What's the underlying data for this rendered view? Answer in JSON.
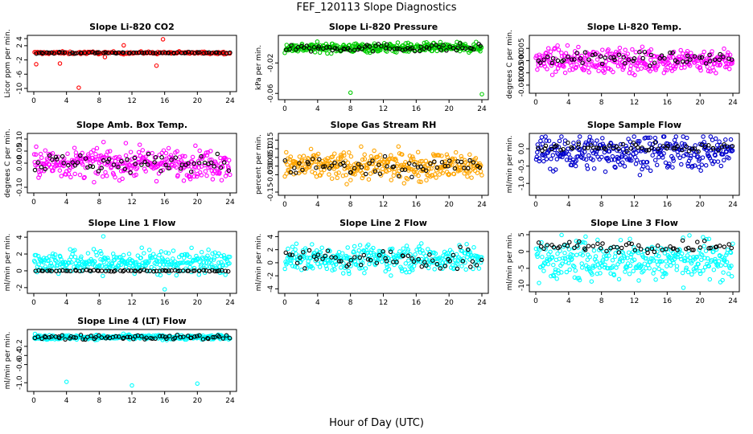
{
  "figure": {
    "title": "FEF_120113  Slope Diagnostics",
    "xlabel": "Hour of Day (UTC)"
  },
  "colors": {
    "black_series": "#000000",
    "axis": "#000000"
  },
  "chart_data": [
    {
      "type": "scatter",
      "title": "Slope Li-820 CO2",
      "ylabel": "Licor ppm per min.",
      "xlim": [
        0,
        24
      ],
      "ylim": [
        -10,
        4
      ],
      "xticks": [
        "0",
        "4",
        "8",
        "12",
        "16",
        "20",
        "24"
      ],
      "yticks": [
        "-10",
        "-6",
        "-2",
        "2",
        "4"
      ],
      "yticks_values": [
        -10,
        -6,
        -2,
        2,
        4
      ],
      "series": [
        {
          "color": "#ff0000",
          "center": 0.0,
          "spread": 0.35,
          "outliers": [
            [
              5.5,
              -9.8
            ],
            [
              15.8,
              3.8
            ],
            [
              0.3,
              -3.2
            ],
            [
              11,
              2.1
            ],
            [
              3.2,
              -3.0
            ],
            [
              8.7,
              -1.2
            ],
            [
              15,
              -3.6
            ]
          ],
          "count": 160
        },
        {
          "color": "#000000",
          "center": 0.0,
          "spread": 0.2,
          "count": 70
        }
      ]
    },
    {
      "type": "scatter",
      "title": "Slope Li-820 Pressure",
      "ylabel": "kPa per min.",
      "xlim": [
        0,
        24
      ],
      "ylim": [
        -0.064,
        0.012
      ],
      "xticks": [
        "0",
        "4",
        "8",
        "12",
        "16",
        "20",
        "24"
      ],
      "yticks": [
        "-0.06",
        "-0.02"
      ],
      "yticks_values": [
        -0.06,
        -0.02
      ],
      "series": [
        {
          "color": "#00cc00",
          "center": 0.0,
          "spread": 0.006,
          "outliers": [
            [
              8,
              -0.059
            ],
            [
              24,
              -0.061
            ]
          ],
          "count": 360
        },
        {
          "color": "#000000",
          "center": 0.0,
          "spread": 0.005,
          "count": 70
        }
      ]
    },
    {
      "type": "scatter",
      "title": "Slope Li-820 Temp.",
      "ylabel": "degrees C per min.",
      "xlim": [
        0,
        24
      ],
      "ylim": [
        -0.012,
        0.009
      ],
      "xticks": [
        "0",
        "4",
        "8",
        "12",
        "16",
        "20",
        "24"
      ],
      "yticks": [
        "-0.010",
        "-0.005",
        "0.000",
        "0.005"
      ],
      "yticks_values": [
        -0.01,
        -0.005,
        0,
        0.005
      ],
      "series": [
        {
          "color": "#ff00ff",
          "center": 0.0,
          "spread": 0.005,
          "count": 330
        },
        {
          "color": "#000000",
          "center": 0.001,
          "spread": 0.003,
          "count": 60
        }
      ]
    },
    {
      "type": "scatter",
      "title": "Slope Amb. Box Temp.",
      "ylabel": "degrees C per min.",
      "xlim": [
        0,
        24
      ],
      "ylim": [
        -0.11,
        0.11
      ],
      "xticks": [
        "0",
        "4",
        "8",
        "12",
        "16",
        "20",
        "24"
      ],
      "yticks": [
        "-0.10",
        "0.00",
        "0.05",
        "0.10"
      ],
      "yticks_values": [
        -0.1,
        0,
        0.05,
        0.1
      ],
      "series": [
        {
          "color": "#ff00ff",
          "center": 0.0,
          "spread": 0.06,
          "count": 330
        },
        {
          "color": "#000000",
          "center": 0.0,
          "spread": 0.04,
          "count": 60
        }
      ]
    },
    {
      "type": "scatter",
      "title": "Slope Gas Stream RH",
      "ylabel": "percent per min.",
      "xlim": [
        0,
        24
      ],
      "ylim": [
        -0.15,
        0.17
      ],
      "xticks": [
        "0",
        "4",
        "8",
        "12",
        "16",
        "20",
        "24"
      ],
      "yticks": [
        "-0.15",
        "-0.05",
        "0.00",
        "0.05",
        "0.10",
        "0.15"
      ],
      "yticks_values": [
        -0.15,
        -0.05,
        0,
        0.05,
        0.1,
        0.15
      ],
      "series": [
        {
          "color": "#ffa500",
          "center": 0.0,
          "spread": 0.08,
          "count": 360
        },
        {
          "color": "#000000",
          "center": 0.0,
          "spread": 0.05,
          "count": 60
        }
      ]
    },
    {
      "type": "scatter",
      "title": "Slope Sample Flow",
      "ylabel": "ml/min per min.",
      "xlim": [
        0,
        24
      ],
      "ylim": [
        -1.25,
        0.35
      ],
      "xticks": [
        "0",
        "4",
        "8",
        "12",
        "16",
        "20",
        "24"
      ],
      "yticks": [
        "-1.0",
        "-0.5",
        "0.0"
      ],
      "yticks_values": [
        -1,
        -0.5,
        0
      ],
      "series": [
        {
          "color": "#0000cc",
          "center": -0.1,
          "spread": 0.5,
          "count": 330
        },
        {
          "color": "#000000",
          "center": 0.05,
          "spread": 0.12,
          "count": 60
        }
      ]
    },
    {
      "type": "scatter",
      "title": "Slope Line 1 Flow",
      "ylabel": "ml/min per min.",
      "xlim": [
        0,
        24
      ],
      "ylim": [
        -2.3,
        4.3
      ],
      "xticks": [
        "0",
        "4",
        "8",
        "12",
        "16",
        "20",
        "24"
      ],
      "yticks": [
        "-2",
        "0",
        "2",
        "4"
      ],
      "yticks_values": [
        -2,
        0,
        2,
        4
      ],
      "series": [
        {
          "color": "#00ffff",
          "center": 1.0,
          "spread": 1.4,
          "outliers": [
            [
              16,
              -2.2
            ],
            [
              8.5,
              4.1
            ]
          ],
          "count": 330
        },
        {
          "color": "#000000",
          "center": 0.0,
          "spread": 0.08,
          "count": 70
        }
      ]
    },
    {
      "type": "scatter",
      "title": "Slope Line 2 Flow",
      "ylabel": "ml/min per min.",
      "xlim": [
        0,
        24
      ],
      "ylim": [
        -4.2,
        4.3
      ],
      "xticks": [
        "0",
        "4",
        "8",
        "12",
        "16",
        "20",
        "24"
      ],
      "yticks": [
        "-4",
        "-2",
        "0",
        "2",
        "4"
      ],
      "yticks_values": [
        -4,
        -2,
        0,
        2,
        4
      ],
      "series": [
        {
          "color": "#00ffff",
          "center": 0.7,
          "spread": 2.0,
          "count": 330
        },
        {
          "color": "#000000",
          "center": 0.5,
          "spread": 1.6,
          "count": 60
        }
      ]
    },
    {
      "type": "scatter",
      "title": "Slope Line 3 Flow",
      "ylabel": "ml/min per min.",
      "xlim": [
        0,
        24
      ],
      "ylim": [
        -11,
        5
      ],
      "xticks": [
        "0",
        "4",
        "8",
        "12",
        "16",
        "20",
        "24"
      ],
      "yticks": [
        "-10",
        "-5",
        "0",
        "5"
      ],
      "yticks_values": [
        -10,
        -5,
        0,
        5
      ],
      "series": [
        {
          "color": "#00ffff",
          "center": -2.5,
          "spread": 6,
          "count": 330
        },
        {
          "color": "#000000",
          "center": 1.5,
          "spread": 1.6,
          "count": 60
        }
      ]
    },
    {
      "type": "scatter",
      "title": "Slope Line 4 (LT) Flow",
      "ylabel": "ml/min per min.",
      "xlim": [
        0,
        24
      ],
      "ylim": [
        -1.12,
        0.1
      ],
      "xticks": [
        "0",
        "4",
        "8",
        "12",
        "16",
        "20",
        "24"
      ],
      "yticks": [
        "-1.0",
        "-0.6",
        "-0.4",
        "-0.2"
      ],
      "yticks_values": [
        -1,
        -0.6,
        -0.4,
        -0.2
      ],
      "series": [
        {
          "color": "#00ffff",
          "center": 0.0,
          "spread": 0.05,
          "outliers": [
            [
              4,
              -0.98
            ],
            [
              12,
              -1.06
            ],
            [
              20,
              -1.02
            ]
          ],
          "count": 330
        },
        {
          "color": "#000000",
          "center": 0.0,
          "spread": 0.05,
          "count": 70
        }
      ]
    }
  ]
}
